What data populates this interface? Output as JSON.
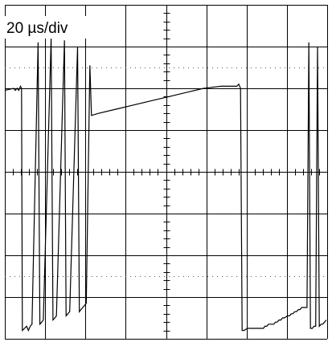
{
  "chart_data": {
    "type": "line",
    "title": "",
    "annotations": [
      "20 µs/div"
    ],
    "x_unit": "µs",
    "x_per_div": 20,
    "x_divisions": 8,
    "y_divisions": 8,
    "xlim": [
      0,
      160
    ],
    "ylim": [
      -4,
      4
    ],
    "grid": true,
    "series": [
      {
        "x": [
          0,
          4.3,
          5.2,
          6.1,
          6.9,
          7.8,
          8.3,
          8.7,
          10.8,
          11.7,
          12.6,
          13.5,
          16.5,
          17.4,
          18.3,
          19.1,
          23.0,
          23.9,
          24.8,
          25.6,
          29.6,
          30.4,
          31.3,
          32.2,
          36.1,
          37.0,
          37.8,
          38.7,
          39.6,
          40.4,
          42.2,
          43.0,
          46.5,
          55.2,
          63.9,
          72.6,
          81.3,
          90.0,
          98.7,
          107.4,
          115.2,
          116.1,
          117.0,
          117.8,
          118.7,
          120.4,
          128.3,
          129.1,
          130.0,
          130.9,
          133.5,
          134.3,
          135.2,
          136.1,
          137.0,
          137.8,
          138.7,
          140.4,
          141.3,
          142.2,
          143.0,
          143.9,
          144.8,
          145.7,
          146.5,
          147.4,
          149.1,
          150.0,
          150.9,
          151.7,
          152.6,
          153.5,
          154.3,
          155.2,
          156.1,
          157.0,
          157.8,
          158.7,
          159.6
        ],
        "y": [
          1.95,
          2.0,
          1.95,
          2.0,
          1.95,
          2.05,
          2.0,
          -3.8,
          -3.7,
          -3.8,
          -3.7,
          -3.65,
          3.1,
          -3.65,
          -3.6,
          -3.55,
          3.2,
          -3.55,
          -3.5,
          -3.45,
          3.15,
          -3.45,
          -3.4,
          -3.35,
          3.0,
          -3.35,
          -3.3,
          -3.25,
          -3.2,
          -3.15,
          2.55,
          1.35,
          1.4,
          1.5,
          1.6,
          1.7,
          1.8,
          1.9,
          2.0,
          2.05,
          2.05,
          2.1,
          2.0,
          -3.8,
          -3.8,
          -3.75,
          -3.75,
          -3.7,
          -3.7,
          -3.65,
          -3.65,
          -3.6,
          -3.6,
          -3.55,
          -3.55,
          -3.5,
          -3.5,
          -3.45,
          -3.45,
          -3.4,
          -3.4,
          -3.35,
          -3.35,
          -3.3,
          -3.3,
          -3.25,
          -3.25,
          -3.25,
          3.1,
          -3.75,
          -3.75,
          -3.7,
          -3.7,
          3.0,
          -3.7,
          -3.65,
          -3.65,
          -3.6,
          -3.55
        ]
      }
    ]
  }
}
